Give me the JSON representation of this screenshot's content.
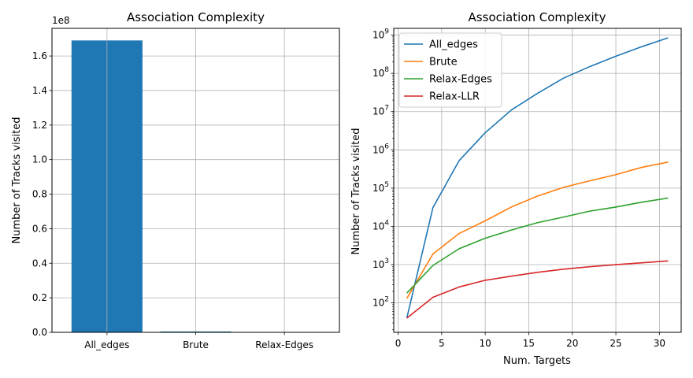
{
  "chart_data": [
    {
      "type": "bar",
      "title": "Association Complexity",
      "xlabel": "",
      "ylabel": "Number of Tracks visited",
      "offset_label": "1e8",
      "categories": [
        "All_edges",
        "Brute",
        "Relax-Edges"
      ],
      "values": [
        169000000,
        480000,
        55000
      ],
      "ylim": [
        0,
        176000000
      ],
      "yticks": [
        0,
        20000000,
        40000000,
        60000000,
        80000000,
        100000000,
        120000000,
        140000000,
        160000000
      ],
      "ytick_labels": [
        "0.0",
        "0.2",
        "0.4",
        "0.6",
        "0.8",
        "1.0",
        "1.2",
        "1.4",
        "1.6"
      ],
      "grid": true,
      "color": "#1f77b4"
    },
    {
      "type": "line",
      "title": "Association Complexity",
      "xlabel": "Num. Targets",
      "ylabel": "Number of Tracks visited",
      "yscale": "log",
      "xlim": [
        -0.5,
        32.5
      ],
      "ylim": [
        17,
        1500000000
      ],
      "xticks": [
        0,
        5,
        10,
        15,
        20,
        25,
        30
      ],
      "ytick_exponents": [
        2,
        3,
        4,
        5,
        6,
        7,
        8,
        9
      ],
      "grid": true,
      "legend": "top-left",
      "x": [
        1,
        4,
        7,
        10,
        13,
        16,
        19,
        22,
        25,
        28,
        31
      ],
      "series": [
        {
          "name": "All_edges",
          "color": "#1f77b4",
          "values": [
            40,
            31000,
            520000,
            2800000,
            11000000,
            30000000,
            75000000,
            150000000,
            280000000,
            500000000,
            850000000
          ]
        },
        {
          "name": "Brute",
          "color": "#ff7f0e",
          "values": [
            130,
            1900,
            6500,
            14000,
            32000,
            62000,
            105000,
            155000,
            225000,
            350000,
            480000
          ]
        },
        {
          "name": "Relax-Edges",
          "color": "#2ca02c",
          "values": [
            180,
            950,
            2600,
            4900,
            8000,
            12500,
            17500,
            25000,
            32000,
            43000,
            55000
          ]
        },
        {
          "name": "Relax-LLR",
          "color": "#d62728",
          "values": [
            40,
            140,
            260,
            390,
            500,
            630,
            760,
            880,
            1000,
            1120,
            1250
          ]
        }
      ]
    }
  ]
}
